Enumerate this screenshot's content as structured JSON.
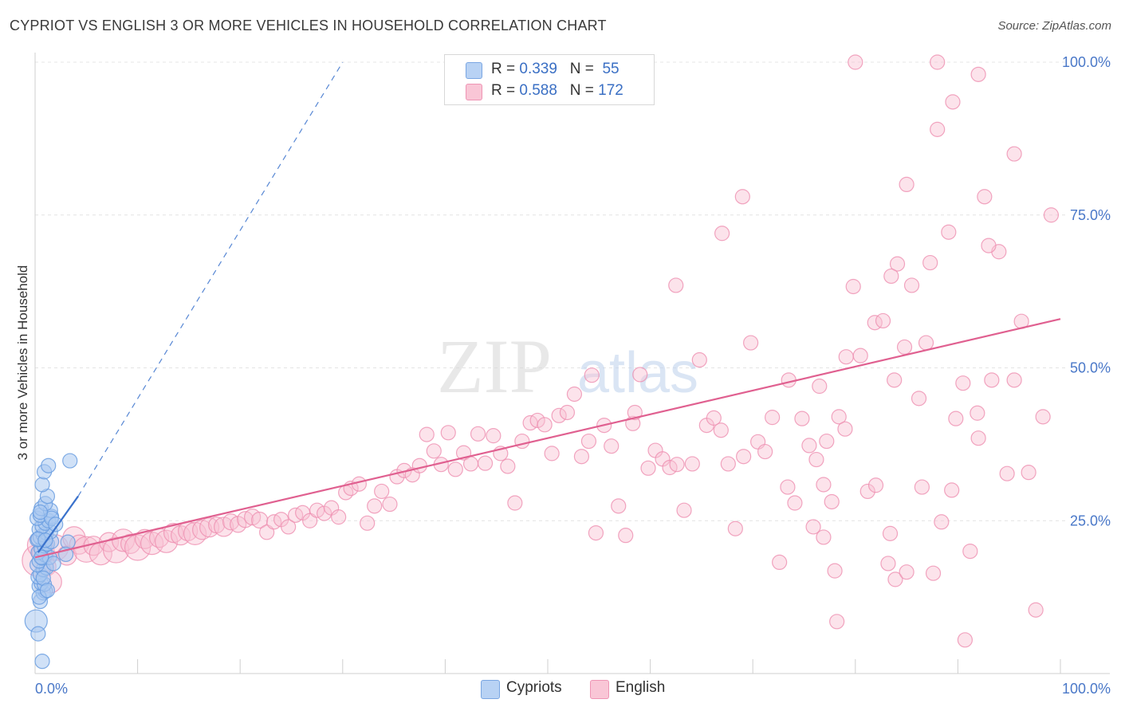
{
  "title": "CYPRIOT VS ENGLISH 3 OR MORE VEHICLES IN HOUSEHOLD CORRELATION CHART",
  "source": "Source: ZipAtlas.com",
  "legend": {
    "rows": [
      {
        "r_label": "R =",
        "r_value": "0.339",
        "n_label": "N =",
        "n_value": "55"
      },
      {
        "r_label": "R =",
        "r_value": "0.588",
        "n_label": "N =",
        "n_value": "172"
      }
    ]
  },
  "bottom_legend": [
    "Cypriots",
    "English"
  ],
  "colors": {
    "cypriots_fill": "#aac8f0",
    "cypriots_stroke": "#6a9ee0",
    "cypriots_line": "#3a72cc",
    "english_fill": "#f8c0d2",
    "english_stroke": "#ee8fb0",
    "english_line": "#e06090",
    "axis_text": "#4a78c8",
    "grid": "#e4e4e4"
  },
  "chart_data": {
    "type": "scatter",
    "title": "CYPRIOT VS ENGLISH 3 OR MORE VEHICLES IN HOUSEHOLD CORRELATION CHART",
    "xlabel": "",
    "ylabel": "3 or more Vehicles in Household",
    "xlim": [
      0,
      100
    ],
    "ylim": [
      0,
      100
    ],
    "x_tick_labels": [
      "0.0%",
      "100.0%"
    ],
    "y_ticks": [
      25,
      50,
      75,
      100
    ],
    "y_tick_labels": [
      "25.0%",
      "50.0%",
      "75.0%",
      "100.0%"
    ],
    "grid": true,
    "watermark": {
      "zip": "ZIP",
      "atlas": "atlas"
    },
    "series": [
      {
        "name": "Cypriots",
        "r": 0.339,
        "n": 55,
        "trend_solid": [
          [
            0.3,
            19.8
          ],
          [
            4.2,
            29
          ]
        ],
        "trend_dashed": [
          [
            4.2,
            29
          ],
          [
            30,
            100
          ]
        ],
        "points": [
          [
            0.1,
            8.6,
            14
          ],
          [
            0.3,
            6.5,
            9
          ],
          [
            0.7,
            2.0,
            9
          ],
          [
            0.5,
            11.8,
            9
          ],
          [
            0.8,
            13.2,
            9
          ],
          [
            1.0,
            13.5,
            9
          ],
          [
            0.4,
            14.3,
            9
          ],
          [
            0.6,
            14.8,
            9
          ],
          [
            0.9,
            14.6,
            9
          ],
          [
            0.3,
            15.8,
            9
          ],
          [
            0.5,
            16.2,
            9
          ],
          [
            0.8,
            17.0,
            9
          ],
          [
            1.1,
            17.3,
            9
          ],
          [
            0.2,
            17.8,
            9
          ],
          [
            0.4,
            18.4,
            9
          ],
          [
            0.7,
            18.9,
            9
          ],
          [
            1.0,
            19.4,
            9
          ],
          [
            1.4,
            19.0,
            9
          ],
          [
            0.3,
            19.8,
            9
          ],
          [
            0.6,
            20.4,
            9
          ],
          [
            0.9,
            20.9,
            9
          ],
          [
            1.2,
            21.2,
            9
          ],
          [
            1.6,
            21.6,
            9
          ],
          [
            0.2,
            21.9,
            9
          ],
          [
            0.5,
            22.3,
            9
          ],
          [
            0.8,
            22.7,
            9
          ],
          [
            1.1,
            23.0,
            9
          ],
          [
            1.5,
            23.2,
            9
          ],
          [
            0.4,
            23.6,
            9
          ],
          [
            0.7,
            24.1,
            9
          ],
          [
            1.0,
            24.6,
            9
          ],
          [
            1.3,
            25.0,
            9
          ],
          [
            0.2,
            25.4,
            9
          ],
          [
            0.5,
            25.9,
            9
          ],
          [
            1.6,
            25.7,
            9
          ],
          [
            0.6,
            27.0,
            9
          ],
          [
            1.5,
            26.7,
            9
          ],
          [
            1.0,
            27.8,
            9
          ],
          [
            1.2,
            29.0,
            9
          ],
          [
            0.7,
            30.9,
            9
          ],
          [
            0.9,
            33.0,
            9
          ],
          [
            1.3,
            34.0,
            9
          ],
          [
            3.4,
            34.8,
            9
          ],
          [
            1.6,
            25.4,
            9
          ],
          [
            2.0,
            24.4,
            9
          ],
          [
            3.2,
            21.5,
            9
          ],
          [
            3.0,
            19.5,
            9
          ],
          [
            1.8,
            18.0,
            9
          ],
          [
            0.4,
            12.5,
            9
          ],
          [
            0.8,
            15.6,
            9
          ],
          [
            1.2,
            13.6,
            9
          ],
          [
            0.3,
            22.0,
            9
          ],
          [
            0.5,
            26.4,
            9
          ],
          [
            1.0,
            21.8,
            9
          ],
          [
            0.6,
            19.0,
            9
          ]
        ]
      },
      {
        "name": "English",
        "r": 0.588,
        "n": 172,
        "trend": [
          [
            0,
            19
          ],
          [
            100,
            58
          ]
        ],
        "points": [
          [
            0.3,
            18.5,
            20
          ],
          [
            0.5,
            21.0,
            16
          ],
          [
            0.8,
            19.8,
            14
          ],
          [
            1.1,
            17.5,
            12
          ],
          [
            1.5,
            15.0,
            14
          ],
          [
            2.0,
            20.6,
            16
          ],
          [
            3.1,
            19.3,
            12
          ],
          [
            3.8,
            22.2,
            14
          ],
          [
            4.3,
            21.1,
            12
          ],
          [
            5.0,
            20.3,
            16
          ],
          [
            5.7,
            20.9,
            12
          ],
          [
            6.4,
            19.6,
            14
          ],
          [
            7.2,
            21.5,
            12
          ],
          [
            7.9,
            20.2,
            16
          ],
          [
            8.6,
            21.8,
            14
          ],
          [
            9.3,
            21.2,
            12
          ],
          [
            10.0,
            20.6,
            16
          ],
          [
            10.7,
            22.0,
            12
          ],
          [
            11.4,
            21.3,
            14
          ],
          [
            12.1,
            22.2,
            12
          ],
          [
            12.8,
            21.6,
            14
          ],
          [
            13.5,
            23.0,
            12
          ],
          [
            14.2,
            22.6,
            12
          ],
          [
            14.9,
            23.3,
            12
          ],
          [
            15.6,
            22.9,
            14
          ],
          [
            16.3,
            23.5,
            12
          ],
          [
            17.0,
            23.9,
            12
          ],
          [
            17.7,
            24.3,
            10
          ],
          [
            18.4,
            24.0,
            12
          ],
          [
            19.1,
            24.8,
            10
          ],
          [
            19.8,
            24.4,
            10
          ],
          [
            20.5,
            25.2,
            10
          ],
          [
            21.2,
            25.6,
            10
          ],
          [
            21.9,
            25.1,
            10
          ],
          [
            22.6,
            23.1,
            9
          ],
          [
            23.3,
            24.8,
            9
          ],
          [
            24.0,
            25.2,
            9
          ],
          [
            24.7,
            24.0,
            9
          ],
          [
            25.4,
            25.9,
            9
          ],
          [
            26.1,
            26.3,
            9
          ],
          [
            26.8,
            25.0,
            9
          ],
          [
            27.5,
            26.7,
            9
          ],
          [
            28.2,
            26.2,
            9
          ],
          [
            28.9,
            27.1,
            9
          ],
          [
            29.6,
            25.6,
            9
          ],
          [
            30.3,
            29.6,
            9
          ],
          [
            30.8,
            30.3,
            9
          ],
          [
            31.6,
            31.0,
            9
          ],
          [
            32.4,
            24.6,
            9
          ],
          [
            33.1,
            27.4,
            9
          ],
          [
            33.8,
            29.8,
            9
          ],
          [
            34.6,
            27.7,
            9
          ],
          [
            35.3,
            32.2,
            9
          ],
          [
            36.0,
            33.2,
            9
          ],
          [
            36.8,
            32.5,
            9
          ],
          [
            37.5,
            34.0,
            9
          ],
          [
            38.2,
            39.1,
            9
          ],
          [
            38.9,
            36.4,
            9
          ],
          [
            39.6,
            34.2,
            9
          ],
          [
            40.3,
            39.4,
            9
          ],
          [
            41.0,
            33.4,
            9
          ],
          [
            41.8,
            36.1,
            9
          ],
          [
            42.5,
            34.3,
            9
          ],
          [
            43.2,
            39.2,
            9
          ],
          [
            43.9,
            34.4,
            9
          ],
          [
            44.7,
            38.9,
            9
          ],
          [
            45.4,
            36.0,
            9
          ],
          [
            46.1,
            33.9,
            9
          ],
          [
            46.8,
            27.9,
            9
          ],
          [
            47.5,
            38.0,
            9
          ],
          [
            48.3,
            41.0,
            9
          ],
          [
            49.0,
            41.4,
            9
          ],
          [
            49.7,
            40.7,
            9
          ],
          [
            50.4,
            36.0,
            9
          ],
          [
            51.1,
            42.2,
            9
          ],
          [
            51.9,
            42.7,
            9
          ],
          [
            52.6,
            45.7,
            9
          ],
          [
            53.3,
            35.5,
            9
          ],
          [
            54.0,
            38.0,
            9
          ],
          [
            54.7,
            23.0,
            9
          ],
          [
            55.5,
            40.6,
            9
          ],
          [
            56.2,
            37.2,
            9
          ],
          [
            56.9,
            27.4,
            9
          ],
          [
            57.6,
            22.6,
            9
          ],
          [
            58.3,
            40.9,
            9
          ],
          [
            59.0,
            48.9,
            9
          ],
          [
            59.8,
            33.6,
            9
          ],
          [
            60.5,
            36.5,
            9
          ],
          [
            61.2,
            35.1,
            9
          ],
          [
            61.9,
            33.7,
            9
          ],
          [
            62.6,
            34.2,
            9
          ],
          [
            63.3,
            26.7,
            9
          ],
          [
            64.1,
            34.3,
            9
          ],
          [
            64.8,
            51.3,
            9
          ],
          [
            65.5,
            40.6,
            9
          ],
          [
            66.2,
            41.8,
            9
          ],
          [
            66.9,
            39.8,
            9
          ],
          [
            67.6,
            34.3,
            9
          ],
          [
            68.3,
            23.7,
            9
          ],
          [
            69.1,
            35.5,
            9
          ],
          [
            69.8,
            54.1,
            9
          ],
          [
            70.5,
            37.9,
            9
          ],
          [
            71.2,
            36.3,
            9
          ],
          [
            71.9,
            41.9,
            9
          ],
          [
            72.6,
            18.2,
            9
          ],
          [
            73.4,
            30.5,
            9
          ],
          [
            74.1,
            27.9,
            9
          ],
          [
            74.8,
            41.7,
            9
          ],
          [
            75.5,
            37.3,
            9
          ],
          [
            76.2,
            35.0,
            9
          ],
          [
            76.9,
            30.9,
            9
          ],
          [
            77.7,
            28.1,
            9
          ],
          [
            78.4,
            42.0,
            9
          ],
          [
            79.1,
            51.8,
            9
          ],
          [
            79.8,
            63.3,
            9
          ],
          [
            80.5,
            52.0,
            9
          ],
          [
            81.2,
            29.8,
            9
          ],
          [
            81.9,
            57.4,
            9
          ],
          [
            82.7,
            57.7,
            9
          ],
          [
            83.4,
            22.9,
            9
          ],
          [
            84.1,
            67.0,
            9
          ],
          [
            84.8,
            53.4,
            9
          ],
          [
            85.5,
            63.5,
            9
          ],
          [
            86.2,
            45.0,
            9
          ],
          [
            86.9,
            54.1,
            9
          ],
          [
            87.6,
            16.4,
            9
          ],
          [
            88.4,
            24.8,
            9
          ],
          [
            89.1,
            72.2,
            9
          ],
          [
            89.8,
            41.7,
            9
          ],
          [
            90.5,
            47.5,
            9
          ],
          [
            91.2,
            20.0,
            9
          ],
          [
            91.9,
            42.6,
            9
          ],
          [
            92.6,
            78.0,
            9
          ],
          [
            93.3,
            48.0,
            9
          ],
          [
            94.0,
            69.0,
            9
          ],
          [
            94.8,
            32.7,
            9
          ],
          [
            95.5,
            48.0,
            9
          ],
          [
            96.2,
            57.6,
            9
          ],
          [
            96.9,
            32.9,
            9
          ],
          [
            97.6,
            10.4,
            9
          ],
          [
            98.3,
            42.0,
            9
          ],
          [
            99.1,
            75.0,
            9
          ],
          [
            92.0,
            38.5,
            9
          ],
          [
            86.5,
            30.5,
            9
          ],
          [
            80.0,
            100.0,
            9
          ],
          [
            88.0,
            100.0,
            9
          ],
          [
            92.0,
            98.0,
            9
          ],
          [
            88.0,
            89.0,
            9
          ],
          [
            85.0,
            80.0,
            9
          ],
          [
            93.0,
            70.0,
            9
          ],
          [
            87.3,
            67.2,
            9
          ],
          [
            83.5,
            65.0,
            9
          ],
          [
            83.8,
            48.0,
            9
          ],
          [
            76.5,
            47.0,
            9
          ],
          [
            77.2,
            38.0,
            9
          ],
          [
            75.9,
            24.0,
            9
          ],
          [
            76.9,
            22.3,
            9
          ],
          [
            78.0,
            16.8,
            9
          ],
          [
            78.2,
            8.5,
            9
          ],
          [
            79.0,
            40.0,
            9
          ],
          [
            82.0,
            30.8,
            9
          ],
          [
            83.2,
            18.0,
            9
          ],
          [
            83.9,
            15.4,
            9
          ],
          [
            85.0,
            16.6,
            9
          ],
          [
            89.4,
            30.0,
            9
          ],
          [
            90.7,
            5.5,
            9
          ],
          [
            95.5,
            85.0,
            9
          ],
          [
            89.5,
            93.5,
            9
          ],
          [
            73.5,
            48.0,
            9
          ],
          [
            69.0,
            78.0,
            9
          ],
          [
            67.0,
            72.0,
            9
          ],
          [
            62.5,
            63.5,
            9
          ],
          [
            58.5,
            42.7,
            9
          ],
          [
            54.3,
            48.8,
            9
          ]
        ]
      }
    ]
  }
}
